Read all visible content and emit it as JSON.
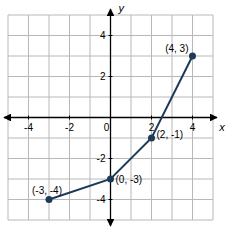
{
  "chart_data": {
    "type": "line",
    "x_label": "x",
    "y_label": "y",
    "x": [
      -3,
      0,
      2,
      4
    ],
    "values": [
      -4,
      -3,
      -1,
      3
    ],
    "value_labels": [
      "(-3, -4)",
      "(0, -3)",
      "(2, -1)",
      "(4, 3)"
    ],
    "data_labels": true,
    "color": "#1d3a57",
    "marker": "circle",
    "xlim": [
      -5,
      5
    ],
    "ylim": [
      -5,
      5
    ],
    "xticks": [
      -4,
      -2,
      0,
      2,
      4
    ],
    "yticks": [
      -4,
      -2,
      2,
      4
    ],
    "grid": true
  }
}
